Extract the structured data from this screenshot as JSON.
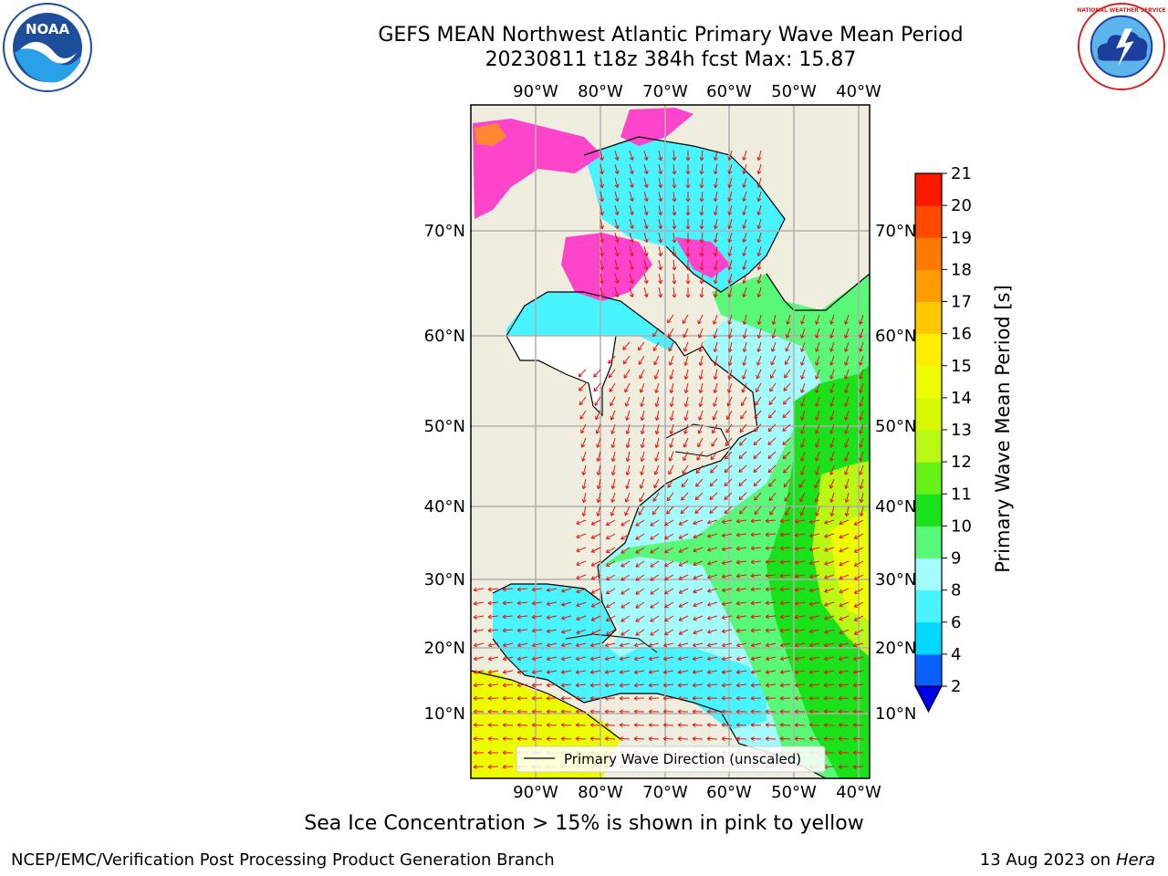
{
  "header": {
    "title_line1": "GEFS MEAN Northwest Atlantic Primary Wave Mean Period",
    "title_line2": "20230811 t18z 384h fcst   Max: 15.87"
  },
  "logos": {
    "left": "NOAA",
    "right": "NATIONAL WEATHER SERVICE"
  },
  "map": {
    "lon_labels": [
      "90°W",
      "80°W",
      "70°W",
      "60°W",
      "50°W",
      "40°W"
    ],
    "lat_labels": [
      "70°N",
      "60°N",
      "50°N",
      "40°N",
      "30°N",
      "20°N",
      "10°N"
    ],
    "legend_label": "Primary Wave Direction (unscaled)",
    "colors": {
      "land": "#efedde",
      "ice_pink": "#ff44cc",
      "arrow": "#e8140f"
    }
  },
  "colorbar": {
    "label": "Primary Wave Mean Period [s]",
    "ticks": [
      "2",
      "4",
      "6",
      "8",
      "9",
      "10",
      "11",
      "12",
      "13",
      "14",
      "15",
      "16",
      "17",
      "18",
      "19",
      "20",
      "21"
    ],
    "colors": [
      "#0a60ff",
      "#00d8ff",
      "#48f4ff",
      "#a4fbfb",
      "#58f878",
      "#1ae21a",
      "#66f214",
      "#b8f814",
      "#d8f800",
      "#eefc00",
      "#ffee00",
      "#ffc800",
      "#ff9c00",
      "#ff7a00",
      "#ff4a00",
      "#ff1800"
    ],
    "under_color": "#0000e8"
  },
  "caption": "Sea Ice Concentration > 15% is shown in pink to yellow",
  "footer": {
    "left": "NCEP/EMC/Verification Post Processing Product Generation Branch",
    "date": "13 Aug 2023 on",
    "machine": "Hera"
  }
}
